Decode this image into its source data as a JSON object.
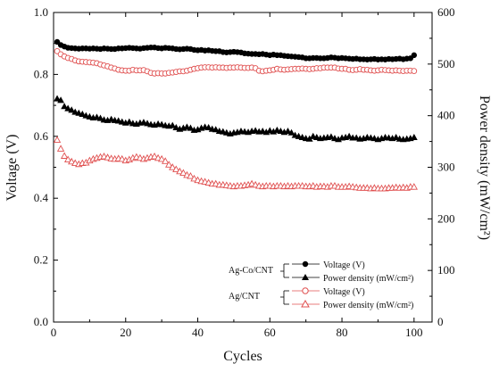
{
  "chart_data": {
    "type": "scatter",
    "xlabel": "Cycles",
    "ylabel": "Voltage (V)",
    "y2label": "Power density (mW/cm²)",
    "xlim": [
      0,
      105
    ],
    "ylim": [
      0,
      1.0
    ],
    "y2lim": [
      0,
      600
    ],
    "x_ticks": [
      "0",
      "20",
      "40",
      "60",
      "80",
      "100"
    ],
    "y_ticks": [
      "0.0",
      "0.2",
      "0.4",
      "0.6",
      "0.8",
      "1.0"
    ],
    "y2_ticks": [
      "0",
      "100",
      "200",
      "300",
      "400",
      "500",
      "600"
    ],
    "legend": {
      "groups": [
        {
          "label": "Ag-Co/CNT",
          "entries": [
            "Voltage (V)",
            "Power density (mW/cm²)"
          ]
        },
        {
          "label": "Ag/CNT",
          "entries": [
            "Voltage (V)",
            "Power density (mW/cm²)"
          ]
        }
      ],
      "position": "bottom-right"
    },
    "series": [
      {
        "name": "Voltage (V)",
        "group": "Ag-Co/CNT",
        "axis": "left",
        "marker": "circle-filled",
        "color": "#000000",
        "x": [
          1,
          2,
          3,
          4,
          5,
          6,
          7,
          8,
          9,
          10,
          11,
          12,
          13,
          14,
          15,
          16,
          17,
          18,
          19,
          20,
          21,
          22,
          23,
          24,
          25,
          26,
          27,
          28,
          29,
          30,
          31,
          32,
          33,
          34,
          35,
          36,
          37,
          38,
          39,
          40,
          41,
          42,
          43,
          44,
          45,
          46,
          47,
          48,
          49,
          50,
          51,
          52,
          53,
          54,
          55,
          56,
          57,
          58,
          59,
          60,
          61,
          62,
          63,
          64,
          65,
          66,
          67,
          68,
          69,
          70,
          71,
          72,
          73,
          74,
          75,
          76,
          77,
          78,
          79,
          80,
          81,
          82,
          83,
          84,
          85,
          86,
          87,
          88,
          89,
          90,
          91,
          92,
          93,
          94,
          95,
          96,
          97,
          98,
          99,
          100
        ],
        "y": [
          0.905,
          0.895,
          0.89,
          0.886,
          0.885,
          0.884,
          0.883,
          0.884,
          0.884,
          0.883,
          0.884,
          0.883,
          0.882,
          0.884,
          0.883,
          0.882,
          0.882,
          0.884,
          0.884,
          0.885,
          0.886,
          0.885,
          0.884,
          0.883,
          0.885,
          0.886,
          0.887,
          0.887,
          0.885,
          0.884,
          0.886,
          0.885,
          0.884,
          0.882,
          0.881,
          0.882,
          0.883,
          0.882,
          0.879,
          0.878,
          0.879,
          0.877,
          0.878,
          0.876,
          0.875,
          0.875,
          0.872,
          0.871,
          0.872,
          0.873,
          0.872,
          0.871,
          0.868,
          0.867,
          0.866,
          0.866,
          0.865,
          0.866,
          0.864,
          0.862,
          0.864,
          0.862,
          0.862,
          0.86,
          0.859,
          0.858,
          0.857,
          0.856,
          0.855,
          0.852,
          0.852,
          0.853,
          0.853,
          0.852,
          0.852,
          0.853,
          0.855,
          0.854,
          0.852,
          0.853,
          0.852,
          0.851,
          0.85,
          0.851,
          0.849,
          0.849,
          0.848,
          0.849,
          0.85,
          0.848,
          0.849,
          0.848,
          0.85,
          0.849,
          0.85,
          0.851,
          0.849,
          0.851,
          0.852,
          0.862
        ]
      },
      {
        "name": "Power density (mW/cm²)",
        "group": "Ag-Co/CNT",
        "axis": "right",
        "marker": "triangle-filled",
        "color": "#000000",
        "x": [
          1,
          2,
          3,
          4,
          5,
          6,
          7,
          8,
          9,
          10,
          11,
          12,
          13,
          14,
          15,
          16,
          17,
          18,
          19,
          20,
          21,
          22,
          23,
          24,
          25,
          26,
          27,
          28,
          29,
          30,
          31,
          32,
          33,
          34,
          35,
          36,
          37,
          38,
          39,
          40,
          41,
          42,
          43,
          44,
          45,
          46,
          47,
          48,
          49,
          50,
          51,
          52,
          53,
          54,
          55,
          56,
          57,
          58,
          59,
          60,
          61,
          62,
          63,
          64,
          65,
          66,
          67,
          68,
          69,
          70,
          71,
          72,
          73,
          74,
          75,
          76,
          77,
          78,
          79,
          80,
          81,
          82,
          83,
          84,
          85,
          86,
          87,
          88,
          89,
          90,
          91,
          92,
          93,
          94,
          95,
          96,
          97,
          98,
          99,
          100
        ],
        "y": [
          433,
          430,
          418,
          414,
          411,
          407,
          405,
          403,
          400,
          398,
          396,
          397,
          395,
          392,
          391,
          393,
          391,
          390,
          388,
          386,
          388,
          385,
          384,
          386,
          387,
          385,
          383,
          382,
          384,
          383,
          381,
          380,
          381,
          377,
          374,
          376,
          378,
          376,
          372,
          373,
          376,
          378,
          377,
          374,
          373,
          370,
          369,
          367,
          365,
          367,
          368,
          370,
          369,
          368,
          370,
          371,
          369,
          370,
          368,
          371,
          369,
          372,
          370,
          368,
          370,
          367,
          362,
          360,
          358,
          356,
          355,
          360,
          358,
          356,
          357,
          358,
          359,
          356,
          354,
          357,
          358,
          360,
          357,
          357,
          355,
          356,
          358,
          357,
          356,
          354,
          356,
          358,
          357,
          356,
          358,
          355,
          354,
          355,
          356,
          358
        ]
      },
      {
        "name": "Voltage (V)",
        "group": "Ag/CNT",
        "axis": "left",
        "marker": "circle-open",
        "color": "#e05050",
        "x": [
          1,
          2,
          3,
          4,
          5,
          6,
          7,
          8,
          9,
          10,
          11,
          12,
          13,
          14,
          15,
          16,
          17,
          18,
          19,
          20,
          21,
          22,
          23,
          24,
          25,
          26,
          27,
          28,
          29,
          30,
          31,
          32,
          33,
          34,
          35,
          36,
          37,
          38,
          39,
          40,
          41,
          42,
          43,
          44,
          45,
          46,
          47,
          48,
          49,
          50,
          51,
          52,
          53,
          54,
          55,
          56,
          57,
          58,
          59,
          60,
          61,
          62,
          63,
          64,
          65,
          66,
          67,
          68,
          69,
          70,
          71,
          72,
          73,
          74,
          75,
          76,
          77,
          78,
          79,
          80,
          81,
          82,
          83,
          84,
          85,
          86,
          87,
          88,
          89,
          90,
          91,
          92,
          93,
          94,
          95,
          96,
          97,
          98,
          99,
          100
        ],
        "y": [
          0.875,
          0.865,
          0.858,
          0.853,
          0.85,
          0.845,
          0.842,
          0.841,
          0.84,
          0.839,
          0.838,
          0.836,
          0.832,
          0.829,
          0.826,
          0.822,
          0.819,
          0.815,
          0.813,
          0.812,
          0.812,
          0.815,
          0.813,
          0.813,
          0.814,
          0.81,
          0.805,
          0.803,
          0.804,
          0.803,
          0.803,
          0.805,
          0.806,
          0.808,
          0.81,
          0.81,
          0.812,
          0.815,
          0.818,
          0.82,
          0.822,
          0.823,
          0.823,
          0.822,
          0.823,
          0.822,
          0.822,
          0.821,
          0.822,
          0.822,
          0.823,
          0.822,
          0.821,
          0.821,
          0.822,
          0.82,
          0.812,
          0.81,
          0.812,
          0.813,
          0.815,
          0.818,
          0.816,
          0.815,
          0.816,
          0.817,
          0.818,
          0.818,
          0.819,
          0.818,
          0.817,
          0.818,
          0.82,
          0.82,
          0.822,
          0.822,
          0.822,
          0.822,
          0.819,
          0.818,
          0.818,
          0.815,
          0.814,
          0.815,
          0.817,
          0.815,
          0.815,
          0.813,
          0.812,
          0.813,
          0.815,
          0.814,
          0.813,
          0.812,
          0.813,
          0.812,
          0.811,
          0.812,
          0.812,
          0.811
        ]
      },
      {
        "name": "Power density (mW/cm²)",
        "group": "Ag/CNT",
        "axis": "right",
        "marker": "triangle-open",
        "color": "#e05050",
        "x": [
          1,
          2,
          3,
          4,
          5,
          6,
          7,
          8,
          9,
          10,
          11,
          12,
          13,
          14,
          15,
          16,
          17,
          18,
          19,
          20,
          21,
          22,
          23,
          24,
          25,
          26,
          27,
          28,
          29,
          30,
          31,
          32,
          33,
          34,
          35,
          36,
          37,
          38,
          39,
          40,
          41,
          42,
          43,
          44,
          45,
          46,
          47,
          48,
          49,
          50,
          51,
          52,
          53,
          54,
          55,
          56,
          57,
          58,
          59,
          60,
          61,
          62,
          63,
          64,
          65,
          66,
          67,
          68,
          69,
          70,
          71,
          72,
          73,
          74,
          75,
          76,
          77,
          78,
          79,
          80,
          81,
          82,
          83,
          84,
          85,
          86,
          87,
          88,
          89,
          90,
          91,
          92,
          93,
          94,
          95,
          96,
          97,
          98,
          99,
          100
        ],
        "y": [
          353,
          336,
          322,
          315,
          311,
          308,
          306,
          308,
          309,
          313,
          316,
          318,
          320,
          321,
          319,
          317,
          316,
          317,
          316,
          313,
          315,
          318,
          320,
          318,
          316,
          318,
          320,
          321,
          318,
          316,
          312,
          305,
          300,
          296,
          292,
          289,
          285,
          283,
          278,
          275,
          273,
          272,
          270,
          268,
          268,
          266,
          266,
          265,
          264,
          263,
          264,
          264,
          265,
          266,
          268,
          266,
          264,
          263,
          264,
          264,
          263,
          264,
          264,
          263,
          264,
          263,
          264,
          264,
          264,
          263,
          263,
          264,
          262,
          263,
          263,
          262,
          264,
          264,
          262,
          262,
          262,
          263,
          262,
          261,
          260,
          260,
          260,
          259,
          260,
          259,
          259,
          259,
          260,
          260,
          261,
          260,
          261,
          260,
          262,
          262
        ]
      }
    ]
  }
}
